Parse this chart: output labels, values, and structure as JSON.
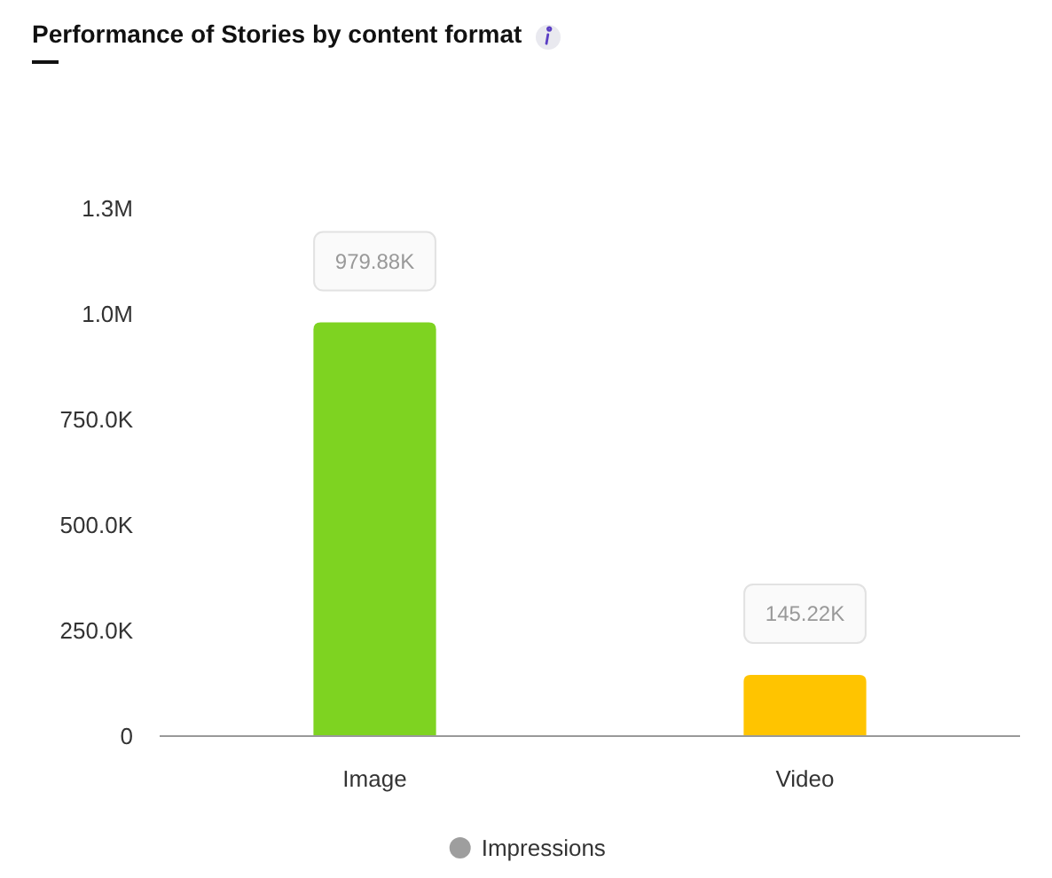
{
  "chart_data": {
    "type": "bar",
    "title": "Performance of Stories by content format",
    "categories": [
      "Image",
      "Video"
    ],
    "series": [
      {
        "name": "Impressions",
        "color": "#9e9e9e",
        "colors": [
          "#7ed321",
          "#ffc400"
        ],
        "values": [
          979880,
          145220
        ],
        "value_labels": [
          "979.88K",
          "145.22K"
        ]
      }
    ],
    "ylim": [
      0,
      1250000
    ],
    "yticks": [
      0,
      {
        "value": 250000,
        "label": "250.0K"
      },
      {
        "value": 500000,
        "label": "500.0K"
      },
      {
        "value": 750000,
        "label": "750.0K"
      },
      {
        "value": 1000000,
        "label": "1.0M"
      },
      {
        "value": 1250000,
        "label": "1.3M"
      }
    ],
    "grid": false,
    "legend": "bottom"
  }
}
